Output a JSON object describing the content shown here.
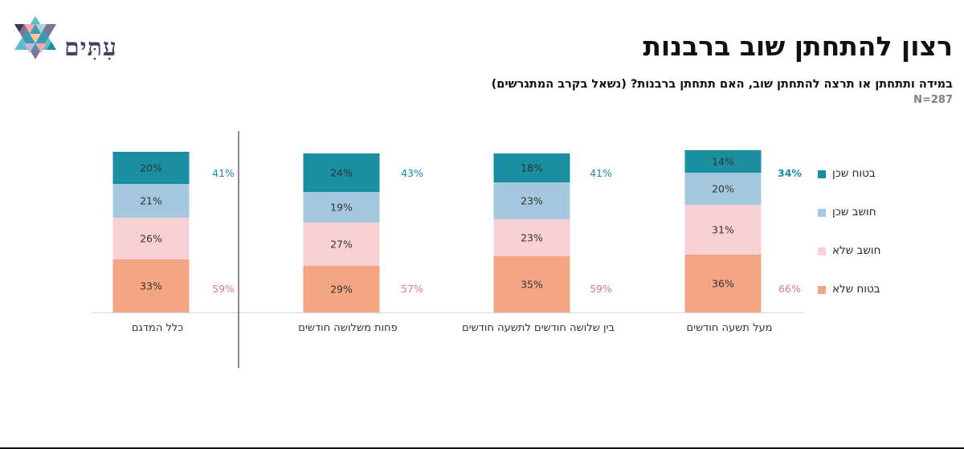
{
  "header": {
    "logo_text": "עִתִּים",
    "title": "רצון להתחתן שוב ברבנות",
    "subtitle": "במידה ותתחתן או תרצה להתחתן שוב, האם תתחתן ברבנות? (נשאל בקרב המתגרשים)",
    "sample_size": "N=287"
  },
  "colors": {
    "certain_yes": "#1a8f9f",
    "think_yes": "#a4c8dd",
    "think_no": "#f9d0d3",
    "certain_no": "#f4a583",
    "yes_total_text": "#1a8f9f",
    "no_total_text": "#e07a7f"
  },
  "chart_data": {
    "type": "bar",
    "stacked": true,
    "percent": true,
    "categories": [
      "כלל המדגם",
      "פחות משלושה חודשים",
      "בין שלושה חודשים לתשעה חודשים",
      "מעל תשעה חודשים"
    ],
    "series": [
      {
        "name": "בטוח שלא",
        "color": "#f4a583",
        "values": [
          33,
          29,
          35,
          36
        ],
        "labels": [
          "33%",
          "29%",
          "35%",
          "36%"
        ]
      },
      {
        "name": "חושב שלא",
        "color": "#f9d0d3",
        "values": [
          26,
          27,
          23,
          31
        ],
        "labels": [
          "26%",
          "27%",
          "23%",
          "31%"
        ]
      },
      {
        "name": "חושב שכן",
        "color": "#a4c8dd",
        "values": [
          21,
          19,
          23,
          20
        ],
        "labels": [
          "21%",
          "19%",
          "23%",
          "20%"
        ]
      },
      {
        "name": "בטוח שכן",
        "color": "#1a8f9f",
        "values": [
          20,
          24,
          18,
          14
        ],
        "labels": [
          "20%",
          "24%",
          "18%",
          "14%"
        ]
      }
    ],
    "totals_yes": [
      "41%",
      "43%",
      "41%",
      "34%"
    ],
    "totals_no": [
      "59%",
      "57%",
      "59%",
      "66%"
    ],
    "legend": [
      "בטוח שכן",
      "חושב שכן",
      "חושב שלא",
      "בטוח שלא"
    ],
    "legend_position": "right",
    "grid": false
  }
}
